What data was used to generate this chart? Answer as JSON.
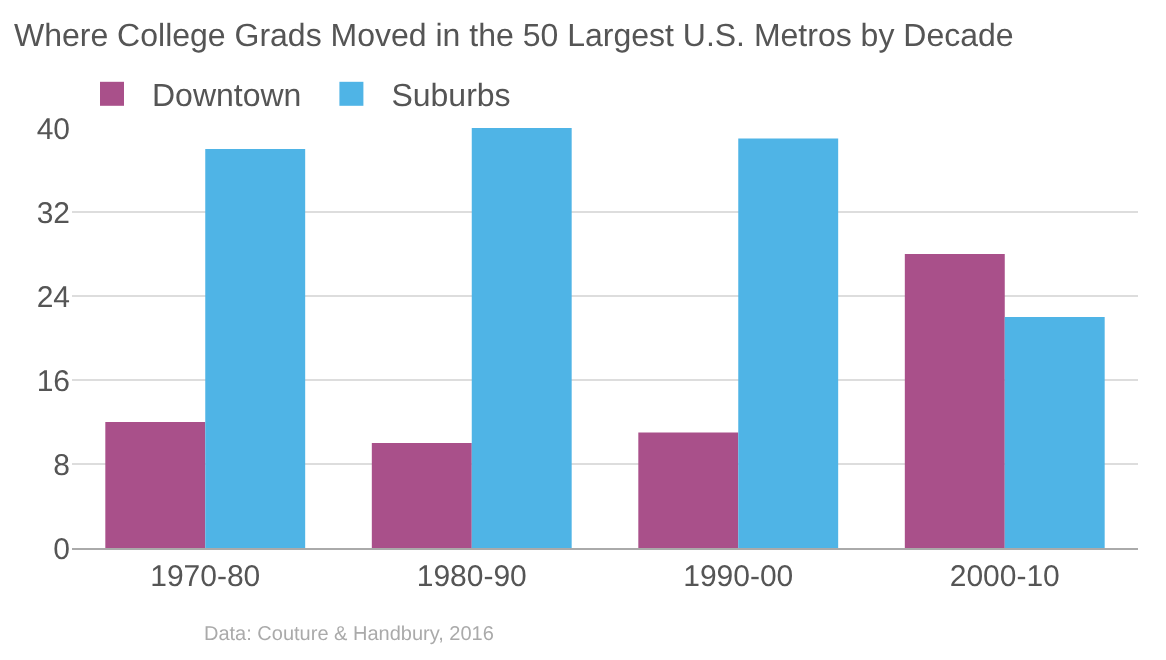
{
  "chart_data": {
    "type": "bar",
    "title": "Where College Grads Moved in the 50 Largest U.S. Metros by Decade",
    "categories": [
      "1970-80",
      "1980-90",
      "1990-00",
      "2000-10"
    ],
    "series": [
      {
        "name": "Downtown",
        "color": "#a9508a",
        "values": [
          12,
          10,
          11,
          28
        ]
      },
      {
        "name": "Suburbs",
        "color": "#4fb4e6",
        "values": [
          38,
          40,
          39,
          22
        ]
      }
    ],
    "ylim": [
      0,
      40
    ],
    "yticks": [
      0,
      8,
      16,
      24,
      32,
      40
    ],
    "grid": "y",
    "legend": "top left",
    "annotations": [
      "Data: Couture & Handbury, 2016"
    ]
  }
}
